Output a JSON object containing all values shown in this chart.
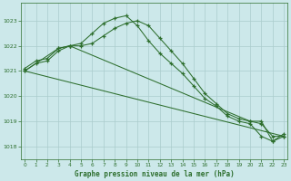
{
  "title": "Graphe pression niveau de la mer (hPa)",
  "bg_color": "#cce8ea",
  "grid_color": "#aacccc",
  "line_color": "#2d6e2d",
  "ylim": [
    1017.5,
    1023.7
  ],
  "yticks": [
    1018,
    1019,
    1020,
    1021,
    1022,
    1023
  ],
  "xlim": [
    -0.3,
    23.3
  ],
  "xticks": [
    0,
    1,
    2,
    3,
    4,
    5,
    6,
    7,
    8,
    9,
    10,
    11,
    12,
    13,
    14,
    15,
    16,
    17,
    18,
    19,
    20,
    21,
    22,
    23
  ],
  "series1": {
    "x": [
      0,
      1,
      2,
      3,
      4,
      5,
      6,
      7,
      8,
      9,
      10,
      11,
      12,
      13,
      14,
      15,
      16,
      17,
      18,
      19,
      20,
      21,
      22,
      23
    ],
    "y": [
      1021.1,
      1021.4,
      1021.5,
      1021.9,
      1022.0,
      1022.1,
      1022.5,
      1022.9,
      1023.1,
      1023.2,
      1022.8,
      1022.2,
      1021.7,
      1021.3,
      1020.9,
      1020.4,
      1019.9,
      1019.6,
      1019.2,
      1019.0,
      1018.9,
      1018.4,
      1018.2,
      1018.4
    ]
  },
  "series2": {
    "x": [
      0,
      1,
      2,
      3,
      4,
      5,
      6,
      7,
      8,
      9,
      10,
      11,
      12,
      13,
      14,
      15,
      16,
      17,
      18,
      19,
      20,
      21,
      22,
      23
    ],
    "y": [
      1021.0,
      1021.3,
      1021.4,
      1021.8,
      1022.0,
      1022.0,
      1022.1,
      1022.4,
      1022.7,
      1022.9,
      1023.0,
      1022.8,
      1022.3,
      1021.8,
      1021.3,
      1020.7,
      1020.1,
      1019.7,
      1019.3,
      1019.1,
      1019.0,
      1018.9,
      1018.4,
      1018.4
    ]
  },
  "series3": {
    "x": [
      0,
      23
    ],
    "y": [
      1021.0,
      1018.4
    ]
  },
  "series4": {
    "x": [
      0,
      3,
      4,
      20,
      21,
      22,
      23
    ],
    "y": [
      1021.0,
      1021.9,
      1022.0,
      1019.0,
      1019.0,
      1018.2,
      1018.5
    ]
  }
}
